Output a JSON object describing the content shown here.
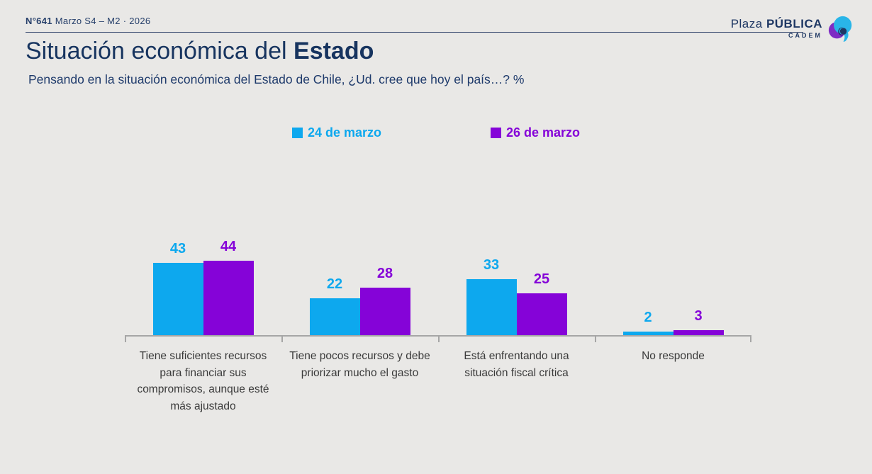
{
  "page": {
    "background": "#E9E8E6"
  },
  "header": {
    "issue_number": "N°641",
    "issue_rest": "Marzo S4 – M2 · 2026",
    "logo": {
      "plaza": "Plaza ",
      "publica": "PÚBLICA",
      "cadem": "CADEM"
    }
  },
  "title": {
    "regular": "Situación económica del ",
    "bold": "Estado"
  },
  "subtitle": "Pensando en la situación económica del Estado de Chile, ¿Ud. cree que hoy el país…? %",
  "chart_data": {
    "type": "bar",
    "categories": [
      "Tiene suficientes recursos para financiar sus compromisos, aunque esté más ajustado",
      "Tiene pocos recursos y debe priorizar mucho el gasto",
      "Está enfrentando una situación fiscal crítica",
      "No responde"
    ],
    "series": [
      {
        "name": "24 de marzo",
        "color": "#0DA8EE",
        "values": [
          43,
          22,
          33,
          2
        ]
      },
      {
        "name": "26 de marzo",
        "color": "#8503D8",
        "values": [
          44,
          28,
          25,
          3
        ]
      }
    ],
    "title": "Situación económica del Estado",
    "xlabel": "",
    "ylabel": "%",
    "ylim": [
      0,
      60
    ],
    "grid": false,
    "legend_position": "top-center",
    "value_labels": true
  },
  "colors": {
    "navy": "#1F3864",
    "axis": "#A6A6A6",
    "category_text": "#3A3A3A",
    "logo_cyan": "#29B5E8",
    "logo_purple": "#7E2CC4"
  }
}
